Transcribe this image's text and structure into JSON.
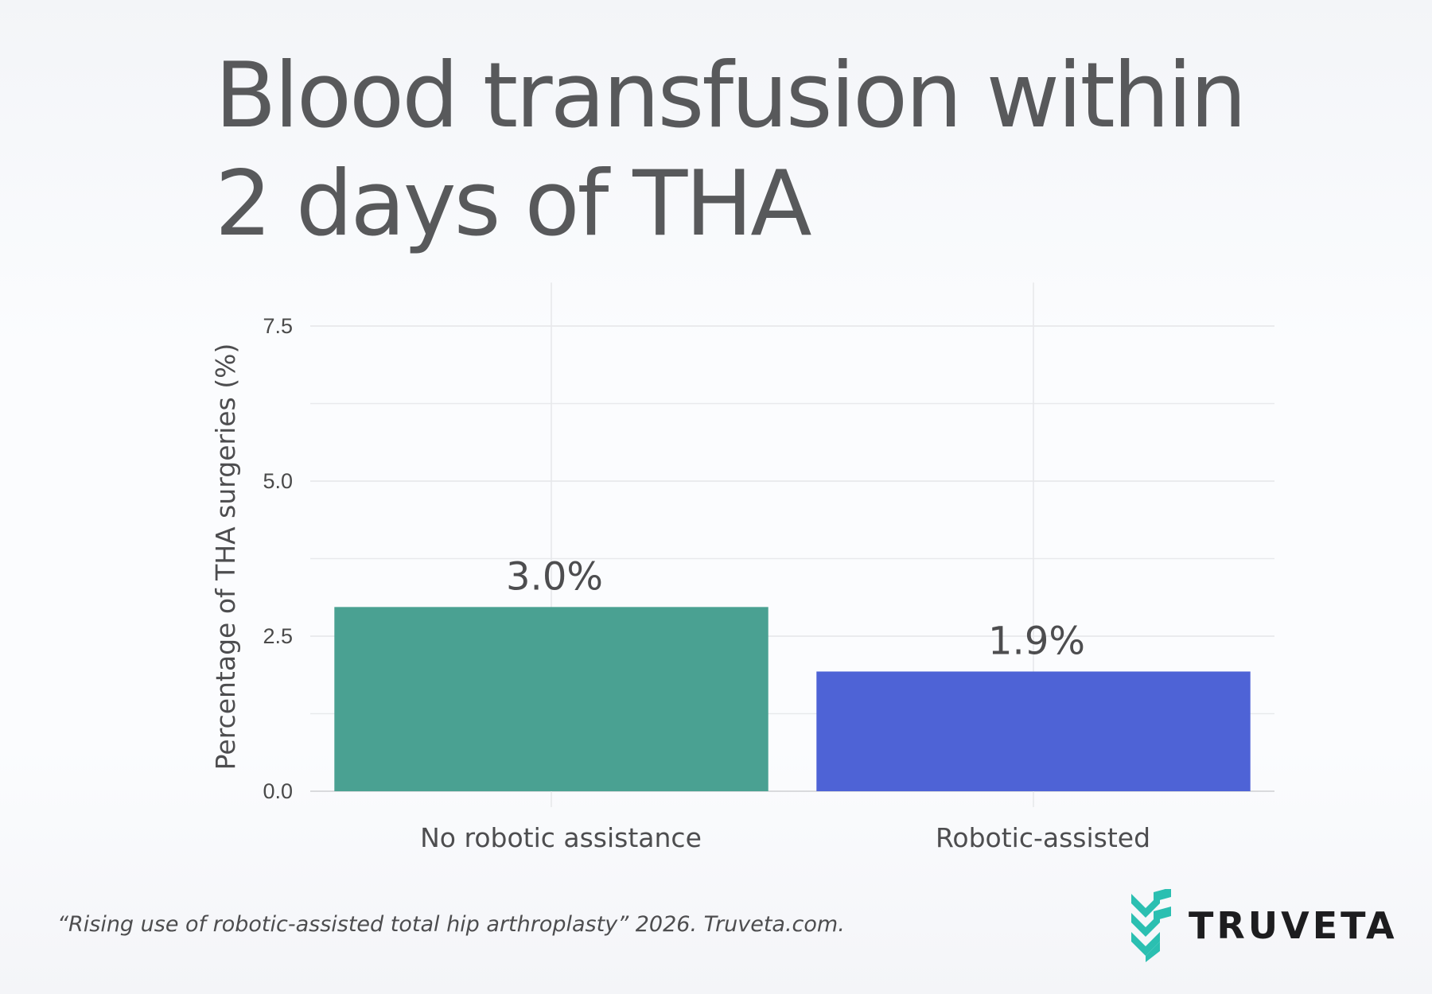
{
  "header": {
    "title_line1": "Blood transfusion within",
    "title_line2": "2 days of THA"
  },
  "chart_data": {
    "type": "bar",
    "categories": [
      "No robotic assistance",
      "Robotic-assisted"
    ],
    "values": [
      2.97,
      1.93
    ],
    "data_labels": [
      "3.0%",
      "1.9%"
    ],
    "colors": [
      "#4aa192",
      "#4e63d6"
    ],
    "title": "",
    "xlabel": "",
    "ylabel": "Percentage of THA surgeries (%)",
    "ylim": [
      0,
      8.2
    ],
    "y_ticks": [
      0,
      2.5,
      5,
      7.5
    ],
    "y_tick_labels": [
      "0.0",
      "2.5",
      "5.0",
      "7.5"
    ],
    "y_minor_gridlines": [
      1.25,
      3.75,
      6.25
    ],
    "grid": true,
    "legend": "none"
  },
  "footer": {
    "citation": "“Rising use of robotic-assisted total hip arthroplasty” 2026. Truveta.com.",
    "logo_text": "TRUVETA",
    "logo_icon": "truveta-chevron-icon",
    "logo_color": "#2bbfb1"
  }
}
